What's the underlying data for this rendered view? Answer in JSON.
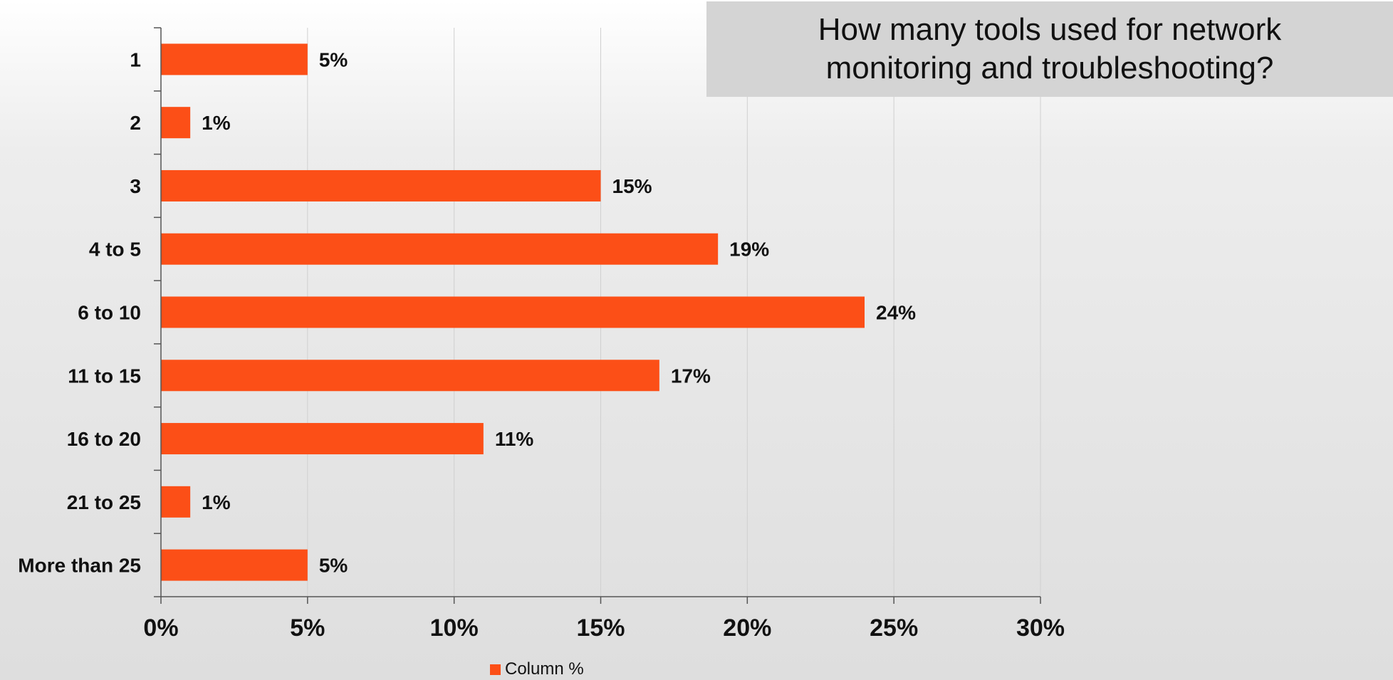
{
  "chart_data": {
    "type": "bar",
    "orientation": "horizontal",
    "title": "How many tools used for network\nmonitoring and troubleshooting?",
    "categories": [
      "1",
      "2",
      "3",
      "4 to 5",
      "6 to 10",
      "11 to 15",
      "16 to 20",
      "21 to 25",
      "More than 25"
    ],
    "series": [
      {
        "name": "Column %",
        "values": [
          5,
          1,
          15,
          19,
          24,
          17,
          11,
          1,
          5
        ],
        "labels": [
          "5%",
          "1%",
          "15%",
          "19%",
          "24%",
          "17%",
          "11%",
          "1%",
          "5%"
        ],
        "color": "#fc4f17"
      }
    ],
    "xlim": [
      0,
      30
    ],
    "xticks": [
      0,
      5,
      10,
      15,
      20,
      25,
      30
    ],
    "xtick_labels": [
      "0%",
      "5%",
      "10%",
      "15%",
      "20%",
      "25%",
      "30%"
    ],
    "grid": true,
    "legend_position": "bottom"
  }
}
